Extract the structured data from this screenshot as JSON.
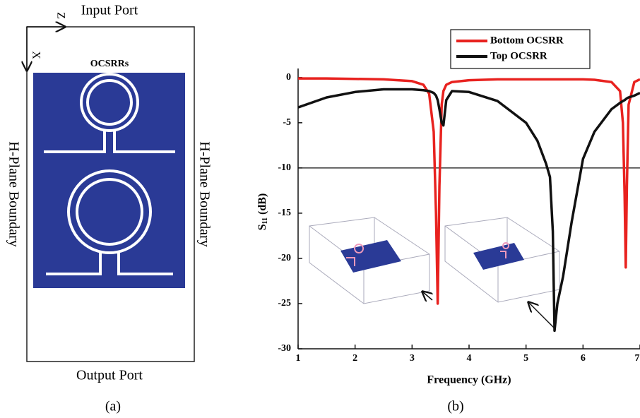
{
  "diagram": {
    "input_port": "Input Port",
    "output_port": "Output Port",
    "z_axis": "Z",
    "x_axis": "X",
    "title": "OCSRRs",
    "left_boundary": "H-Plane Boundary",
    "right_boundary": "H-Plane Boundary",
    "caption": "(a)"
  },
  "chart_data": {
    "type": "line",
    "caption": "(b)",
    "xlabel": "Frequency (GHz)",
    "ylabel": "S",
    "ylabel_sub": "11",
    "ylabel_unit": "(dB)",
    "xlim": [
      1,
      7
    ],
    "ylim": [
      -30,
      1
    ],
    "xticks": [
      1,
      2,
      3,
      4,
      5,
      6,
      7
    ],
    "yticks": [
      -30,
      -25,
      -20,
      -15,
      -10,
      -5,
      0
    ],
    "reference_line": -10,
    "legend": "top",
    "x": [
      1,
      1.5,
      2,
      2.5,
      3,
      3.2,
      3.3,
      3.38,
      3.42,
      3.45,
      3.48,
      3.52,
      3.55,
      3.6,
      3.7,
      4,
      4.5,
      5,
      5.2,
      5.35,
      5.42,
      5.47,
      5.5,
      5.55,
      5.65,
      5.8,
      6,
      6.2,
      6.5,
      6.65,
      6.7,
      6.73,
      6.75,
      6.77,
      6.8,
      6.9,
      7
    ],
    "series": [
      {
        "name": "Bottom OCSRR",
        "color": "#e8221f",
        "values": [
          -0.1,
          -0.1,
          -0.15,
          -0.2,
          -0.4,
          -0.8,
          -1.8,
          -6,
          -15,
          -25,
          -12,
          -3,
          -1.5,
          -0.8,
          -0.5,
          -0.3,
          -0.2,
          -0.2,
          -0.2,
          -0.2,
          -0.2,
          -0.2,
          -0.2,
          -0.2,
          -0.2,
          -0.2,
          -0.2,
          -0.25,
          -0.5,
          -1.5,
          -5,
          -13,
          -21,
          -12,
          -3,
          -0.5,
          -0.2
        ]
      },
      {
        "name": "Top OCSRR",
        "color": "#111111",
        "values": [
          -3.3,
          -2.2,
          -1.6,
          -1.3,
          -1.3,
          -1.4,
          -1.5,
          -1.7,
          -2,
          -2.5,
          -3.5,
          -5,
          -5.3,
          -2.5,
          -1.5,
          -1.6,
          -2.6,
          -5,
          -7,
          -9.5,
          -11,
          -17,
          -28,
          -25,
          -22,
          -16,
          -9,
          -6,
          -3.5,
          -2.8,
          -2.6,
          -2.5,
          -2.4,
          -2.3,
          -2.2,
          -2,
          -1.7
        ]
      }
    ]
  }
}
